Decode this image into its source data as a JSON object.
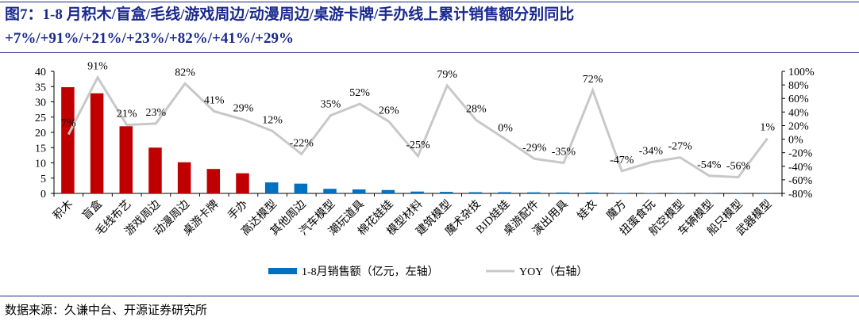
{
  "title_line1": "图7：1-8 月积木/盲盒/毛线/游戏周边/动漫周边/桌游卡牌/手办线上累计销售额分别同比",
  "title_line2": "+7%/+91%/+21%/+23%/+82%/+41%/+29%",
  "source": "数据来源：久谦中台、开源证券研究所",
  "chart_data": {
    "type": "bar",
    "categories": [
      "积木",
      "盲盒",
      "毛线布艺",
      "游戏周边",
      "动漫周边",
      "桌游卡牌",
      "手办",
      "高达模型",
      "其他周边",
      "汽车模型",
      "潮玩道具",
      "棉花娃娃",
      "模型材料",
      "建筑模型",
      "魔术杂技",
      "BJD娃娃",
      "桌游配件",
      "演出用具",
      "娃衣",
      "魔方",
      "扭蛋食玩",
      "航空模型",
      "车辆模型",
      "船只模型",
      "武器模型"
    ],
    "series": [
      {
        "name": "1-8月销售额（亿元，左轴）",
        "type": "bar",
        "axis": "left",
        "values": [
          34.8,
          32.8,
          22,
          15,
          10.2,
          8,
          6.6,
          3.6,
          3.2,
          1.5,
          1.3,
          1.1,
          0.6,
          0.5,
          0.4,
          0.4,
          0.35,
          0.3,
          0.3,
          0.15,
          0.1,
          0.08,
          0.06,
          0.05,
          0.05
        ]
      },
      {
        "name": "YOY（右轴）",
        "type": "line",
        "axis": "right",
        "values": [
          7,
          91,
          21,
          23,
          82,
          41,
          29,
          12,
          -22,
          35,
          52,
          26,
          -25,
          79,
          28,
          0,
          -29,
          -35,
          72,
          -47,
          -34,
          -27,
          -54,
          -56,
          1
        ]
      }
    ],
    "highlight_count": 7,
    "colors": {
      "highlight": "#C00000",
      "bar": "#0070C0",
      "line": "#C8C8C8"
    },
    "left_axis": {
      "ylim": [
        0,
        40
      ],
      "ticks": [
        0,
        5,
        10,
        15,
        20,
        25,
        30,
        35,
        40
      ]
    },
    "right_axis": {
      "ylim": [
        -80,
        100
      ],
      "ticks": [
        -80,
        -60,
        -40,
        -20,
        0,
        20,
        40,
        60,
        80,
        100
      ],
      "unit": "%"
    },
    "legend_position": "bottom"
  }
}
